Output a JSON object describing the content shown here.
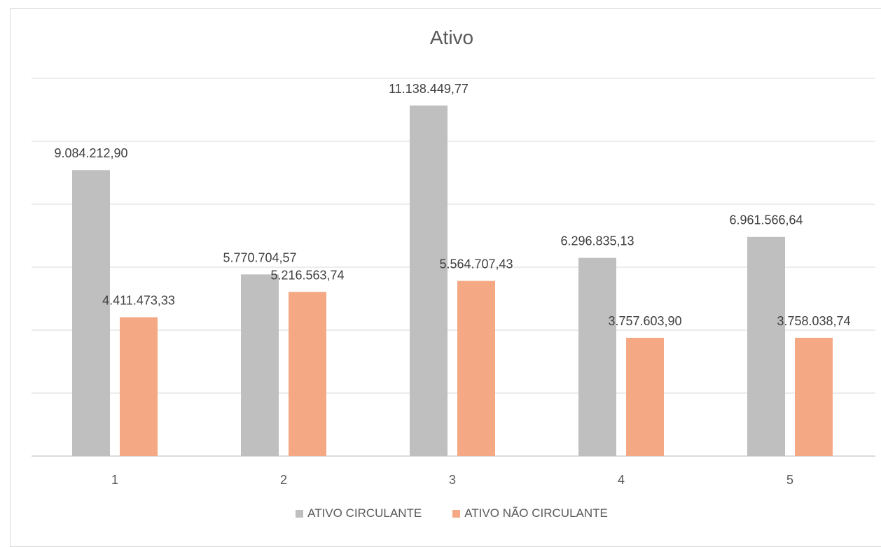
{
  "chart_data": {
    "type": "bar",
    "title": "Ativo",
    "categories": [
      "1",
      "2",
      "3",
      "4",
      "5"
    ],
    "series": [
      {
        "name": "ATIVO CIRCULANTE",
        "color": "#bfbfbf",
        "values": [
          9084212.9,
          5770704.57,
          11138449.77,
          6296835.13,
          6961566.64
        ],
        "labels": [
          "9.084.212,90",
          "5.770.704,57",
          "11.138.449,77",
          "6.296.835,13",
          "6.961.566,64"
        ]
      },
      {
        "name": "ATIVO NÃO CIRCULANTE",
        "color": "#f4a984",
        "values": [
          4411473.33,
          5216563.74,
          5564707.43,
          3757603.9,
          3758038.74
        ],
        "labels": [
          "4.411.473,33",
          "5.216.563,74",
          "5.564.707,43",
          "3.757.603,90",
          "3.758.038,74"
        ]
      }
    ],
    "ylim": [
      0,
      12000000
    ],
    "gridlines": true,
    "legend_position": "bottom"
  }
}
